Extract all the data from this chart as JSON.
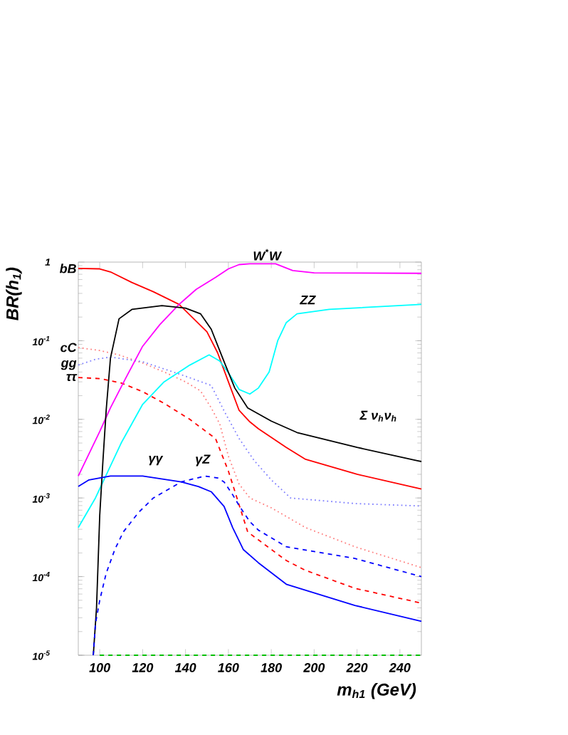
{
  "chart_data": {
    "type": "line",
    "xlabel": "m$_{h1}$ (GeV)",
    "ylabel": "BR(h$_{1}$)",
    "log": "y",
    "legend": false,
    "grid": false,
    "xlim": [
      90,
      250
    ],
    "xticks": [
      100,
      120,
      140,
      160,
      180,
      200,
      220,
      240
    ],
    "ylim": [
      1e-05,
      1
    ],
    "yticks": [
      {
        "value": 1e-05,
        "label": "10$^{-5}$"
      },
      {
        "value": 0.0001,
        "label": "10$^{-4}$"
      },
      {
        "value": 0.001,
        "label": "10$^{-3}$"
      },
      {
        "value": 0.01,
        "label": "10$^{-2}$"
      },
      {
        "value": 0.1,
        "label": "10$^{-1}$"
      },
      1
    ],
    "series": [
      {
        "name": "bB",
        "color": "#ff0000",
        "line_style": "solid",
        "x": [
          90,
          100,
          105,
          115,
          125,
          137,
          150,
          155,
          160,
          165,
          170,
          174,
          187,
          196,
          220,
          250
        ],
        "values": [
          0.83,
          0.82,
          0.75,
          0.55,
          0.42,
          0.29,
          0.13,
          0.07,
          0.03,
          0.013,
          0.0093,
          0.0076,
          0.0044,
          0.0031,
          0.002,
          0.0013
        ]
      },
      {
        "name": "cC",
        "color": "#ff8080",
        "line_style": "dotted",
        "x": [
          90,
          100,
          109,
          120,
          131,
          140,
          147,
          152,
          156,
          160,
          165,
          170,
          180,
          196,
          219,
          250
        ],
        "values": [
          0.082,
          0.075,
          0.066,
          0.052,
          0.039,
          0.03,
          0.023,
          0.014,
          0.0087,
          0.0034,
          0.0015,
          0.001,
          0.00075,
          0.00042,
          0.00024,
          0.00013
        ]
      },
      {
        "name": "gg",
        "color": "#8080ff",
        "line_style": "dotted",
        "x": [
          90,
          98,
          105,
          120,
          138,
          152,
          158,
          165,
          172,
          180,
          189,
          219,
          250
        ],
        "values": [
          0.049,
          0.058,
          0.062,
          0.054,
          0.037,
          0.027,
          0.0128,
          0.0057,
          0.003,
          0.0017,
          0.001,
          0.00085,
          0.00079
        ]
      },
      {
        "name": "ττ",
        "color": "#ff0000",
        "line_style": "dashed",
        "x": [
          90,
          100,
          110,
          120,
          130,
          142,
          154,
          160,
          164,
          169,
          187,
          196,
          219,
          250
        ],
        "values": [
          0.034,
          0.033,
          0.029,
          0.0225,
          0.016,
          0.01,
          0.0057,
          0.0022,
          0.001,
          0.00037,
          0.00016,
          0.00012,
          7.1e-05,
          4.6e-05
        ]
      },
      {
        "name": "W$^{*}$W",
        "color": "#ff00ff",
        "line_style": "solid",
        "x": [
          90,
          100,
          105,
          112,
          120,
          128,
          137,
          145,
          154,
          160,
          165,
          170,
          182,
          190,
          200,
          250
        ],
        "values": [
          0.0019,
          0.007,
          0.014,
          0.033,
          0.085,
          0.16,
          0.29,
          0.45,
          0.64,
          0.82,
          0.93,
          0.95,
          0.95,
          0.78,
          0.73,
          0.72
        ]
      },
      {
        "name": "ZZ",
        "color": "#00ffff",
        "line_style": "solid",
        "x": [
          90,
          98,
          110,
          120,
          130,
          142,
          151,
          156,
          160,
          165,
          170,
          174,
          179,
          183,
          187,
          192,
          207,
          250
        ],
        "values": [
          0.00042,
          0.001,
          0.005,
          0.0155,
          0.03,
          0.049,
          0.066,
          0.055,
          0.039,
          0.024,
          0.021,
          0.025,
          0.04,
          0.1,
          0.17,
          0.22,
          0.25,
          0.29
        ]
      },
      {
        "name": "Σ ν$_{h}$ν$_{h}$",
        "color": "#000000",
        "line_style": "solid",
        "x": [
          97,
          98.5,
          100,
          101.5,
          103,
          105,
          109,
          115,
          129,
          140,
          147,
          152,
          158,
          163,
          169,
          180,
          192,
          220,
          250
        ],
        "values": [
          1e-05,
          4e-05,
          0.0006,
          0.003,
          0.013,
          0.06,
          0.19,
          0.25,
          0.28,
          0.26,
          0.22,
          0.14,
          0.054,
          0.025,
          0.014,
          0.0095,
          0.0068,
          0.0044,
          0.0029
        ]
      },
      {
        "name": "γγ",
        "color": "#0000ff",
        "line_style": "solid",
        "x": [
          90,
          95,
          105,
          120,
          138,
          146,
          152,
          158,
          162,
          167,
          174,
          187,
          219,
          250
        ],
        "values": [
          0.0014,
          0.0017,
          0.0019,
          0.0019,
          0.0016,
          0.0014,
          0.0012,
          0.00078,
          0.00042,
          0.00022,
          0.00015,
          8e-05,
          4.3e-05,
          2.7e-05
        ]
      },
      {
        "name": "γZ",
        "color": "#0000ff",
        "line_style": "dashed",
        "x": [
          97,
          98,
          100,
          103,
          107,
          111,
          118,
          125,
          138,
          149,
          155,
          158,
          162,
          165,
          170,
          174,
          187,
          219,
          250
        ],
        "values": [
          1e-05,
          2.5e-05,
          5e-05,
          0.00011,
          0.00022,
          0.00037,
          0.00065,
          0.001,
          0.0016,
          0.0019,
          0.0018,
          0.0016,
          0.0011,
          0.0008,
          0.0005,
          0.00039,
          0.00024,
          0.00017,
          0.0001
        ]
      },
      {
        "color": "#00c000",
        "line_style": "dashed",
        "x": [
          100,
          250
        ],
        "values": [
          1e-05,
          1e-05
        ]
      }
    ]
  }
}
